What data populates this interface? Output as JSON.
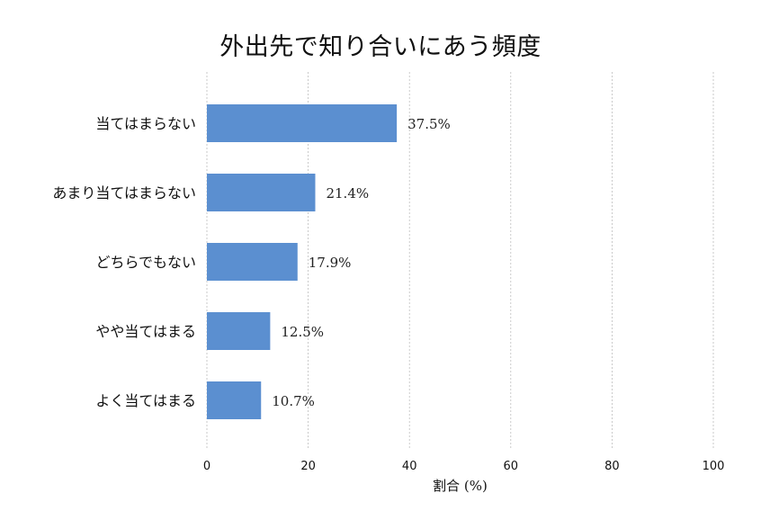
{
  "chart_data": {
    "type": "bar",
    "orientation": "horizontal",
    "title": "外出先で知り合いにあう頻度",
    "xlabel": "割合 (%)",
    "ylabel": "",
    "categories": [
      "当てはまらない",
      "あまり当てはまらない",
      "どちらでもない",
      "やや当てはまる",
      "よく当てはまる"
    ],
    "values": [
      37.5,
      21.4,
      17.9,
      12.5,
      10.7
    ],
    "value_labels": [
      "37.5%",
      "21.4%",
      "17.9%",
      "12.5%",
      "10.7%"
    ],
    "xlim": [
      0,
      100
    ],
    "xticks": [
      0,
      20,
      40,
      60,
      80,
      100
    ],
    "xtick_labels": [
      "0",
      "20",
      "40",
      "60",
      "80",
      "100"
    ],
    "grid": "vertical-dashed",
    "colors": {
      "bar": "#5b8fd0",
      "grid": "#bdbdbd",
      "text": "#111111"
    }
  }
}
